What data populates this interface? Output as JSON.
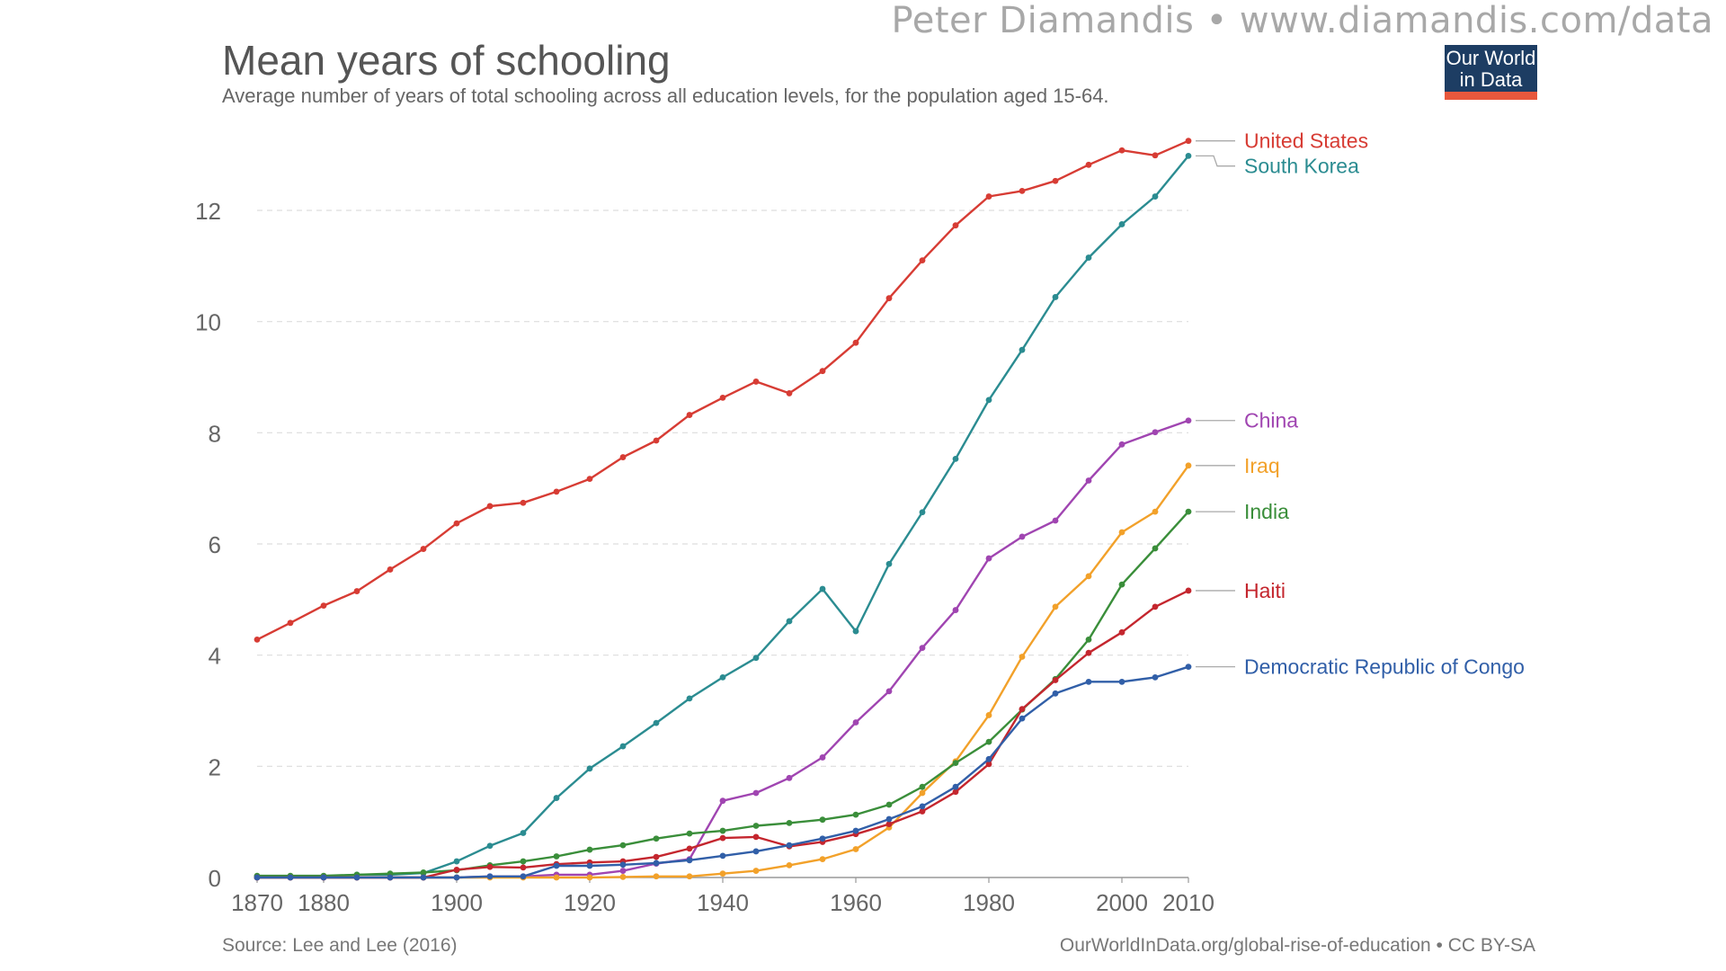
{
  "header": {
    "credit": "Peter Diamandis  •  www.diamandis.com/data"
  },
  "logo": {
    "line1": "Our World",
    "line2": "in Data"
  },
  "footer": {
    "source": "Source: Lee and Lee (2016)",
    "url": "OurWorldInData.org/global-rise-of-education • CC BY-SA"
  },
  "colors": {
    "grid": "#dddddd",
    "axis": "#999999",
    "text": "#666666",
    "accent": "#e8583d",
    "logo_bg": "#1d3d63"
  },
  "chart_data": {
    "type": "line",
    "title": "Mean years of schooling",
    "subtitle": "Average number of years of total schooling across all education levels, for the population aged 15-64.",
    "xlabel": "",
    "ylabel": "",
    "xlim": [
      1870,
      2010
    ],
    "ylim": [
      0,
      13.5
    ],
    "x_ticks": [
      1870,
      1880,
      1900,
      1920,
      1940,
      1960,
      1980,
      2000,
      2010
    ],
    "y_ticks": [
      0,
      2,
      4,
      6,
      8,
      10,
      12
    ],
    "grid": true,
    "legend": "right",
    "x": [
      1870,
      1875,
      1880,
      1885,
      1890,
      1895,
      1900,
      1905,
      1910,
      1915,
      1920,
      1925,
      1930,
      1935,
      1940,
      1945,
      1950,
      1955,
      1960,
      1965,
      1970,
      1975,
      1980,
      1985,
      1990,
      1995,
      2000,
      2005,
      2010
    ],
    "series": [
      {
        "name": "United States",
        "color": "#d73c34",
        "values": [
          4.28,
          4.58,
          4.89,
          5.15,
          5.54,
          5.91,
          6.37,
          6.68,
          6.74,
          6.94,
          7.17,
          7.56,
          7.86,
          8.32,
          8.63,
          8.92,
          8.71,
          9.11,
          9.62,
          10.42,
          11.1,
          11.73,
          12.25,
          12.35,
          12.53,
          12.82,
          13.08,
          12.99,
          13.25
        ]
      },
      {
        "name": "South Korea",
        "color": "#2b8c91",
        "values": [
          0.02,
          0.02,
          0.02,
          0.05,
          0.05,
          0.08,
          0.29,
          0.57,
          0.8,
          1.43,
          1.96,
          2.36,
          2.78,
          3.22,
          3.6,
          3.95,
          4.61,
          5.19,
          4.43,
          5.64,
          6.57,
          7.53,
          8.59,
          9.49,
          10.44,
          11.15,
          11.75,
          12.25,
          12.98
        ]
      },
      {
        "name": "China",
        "color": "#a045b1",
        "values": [
          0,
          0,
          0,
          0,
          0,
          0,
          0,
          0.02,
          0.02,
          0.05,
          0.05,
          0.12,
          0.25,
          0.33,
          1.38,
          1.52,
          1.79,
          2.16,
          2.79,
          3.35,
          4.13,
          4.81,
          5.74,
          6.13,
          6.42,
          7.14,
          7.79,
          8.01,
          8.22
        ]
      },
      {
        "name": "Iraq",
        "color": "#f2a12a",
        "values": [
          0,
          0,
          0,
          0,
          0,
          0,
          0,
          0,
          0,
          0,
          0,
          0.01,
          0.02,
          0.02,
          0.07,
          0.12,
          0.22,
          0.33,
          0.51,
          0.9,
          1.52,
          2.09,
          2.92,
          3.97,
          4.87,
          5.42,
          6.21,
          6.58,
          7.41
        ]
      },
      {
        "name": "India",
        "color": "#3a8e3a",
        "values": [
          0.03,
          0.03,
          0.03,
          0.05,
          0.07,
          0.09,
          0.13,
          0.22,
          0.29,
          0.38,
          0.5,
          0.58,
          0.7,
          0.79,
          0.84,
          0.93,
          0.98,
          1.04,
          1.13,
          1.31,
          1.63,
          2.06,
          2.44,
          3.02,
          3.57,
          4.28,
          5.27,
          5.92,
          6.58
        ]
      },
      {
        "name": "Haiti",
        "color": "#c4262e",
        "values": [
          0,
          0,
          0,
          0,
          0,
          0,
          0.14,
          0.19,
          0.18,
          0.24,
          0.27,
          0.29,
          0.37,
          0.52,
          0.71,
          0.73,
          0.56,
          0.64,
          0.78,
          0.96,
          1.19,
          1.54,
          2.04,
          3.03,
          3.55,
          4.04,
          4.41,
          4.87,
          5.16
        ]
      },
      {
        "name": "Democratic Republic of Congo",
        "color": "#315fa8",
        "values": [
          0,
          0,
          0,
          0,
          0,
          0,
          0,
          0.02,
          0.02,
          0.21,
          0.21,
          0.23,
          0.26,
          0.31,
          0.39,
          0.47,
          0.58,
          0.7,
          0.84,
          1.05,
          1.28,
          1.63,
          2.13,
          2.86,
          3.31,
          3.52,
          3.52,
          3.6,
          3.79
        ]
      }
    ]
  }
}
